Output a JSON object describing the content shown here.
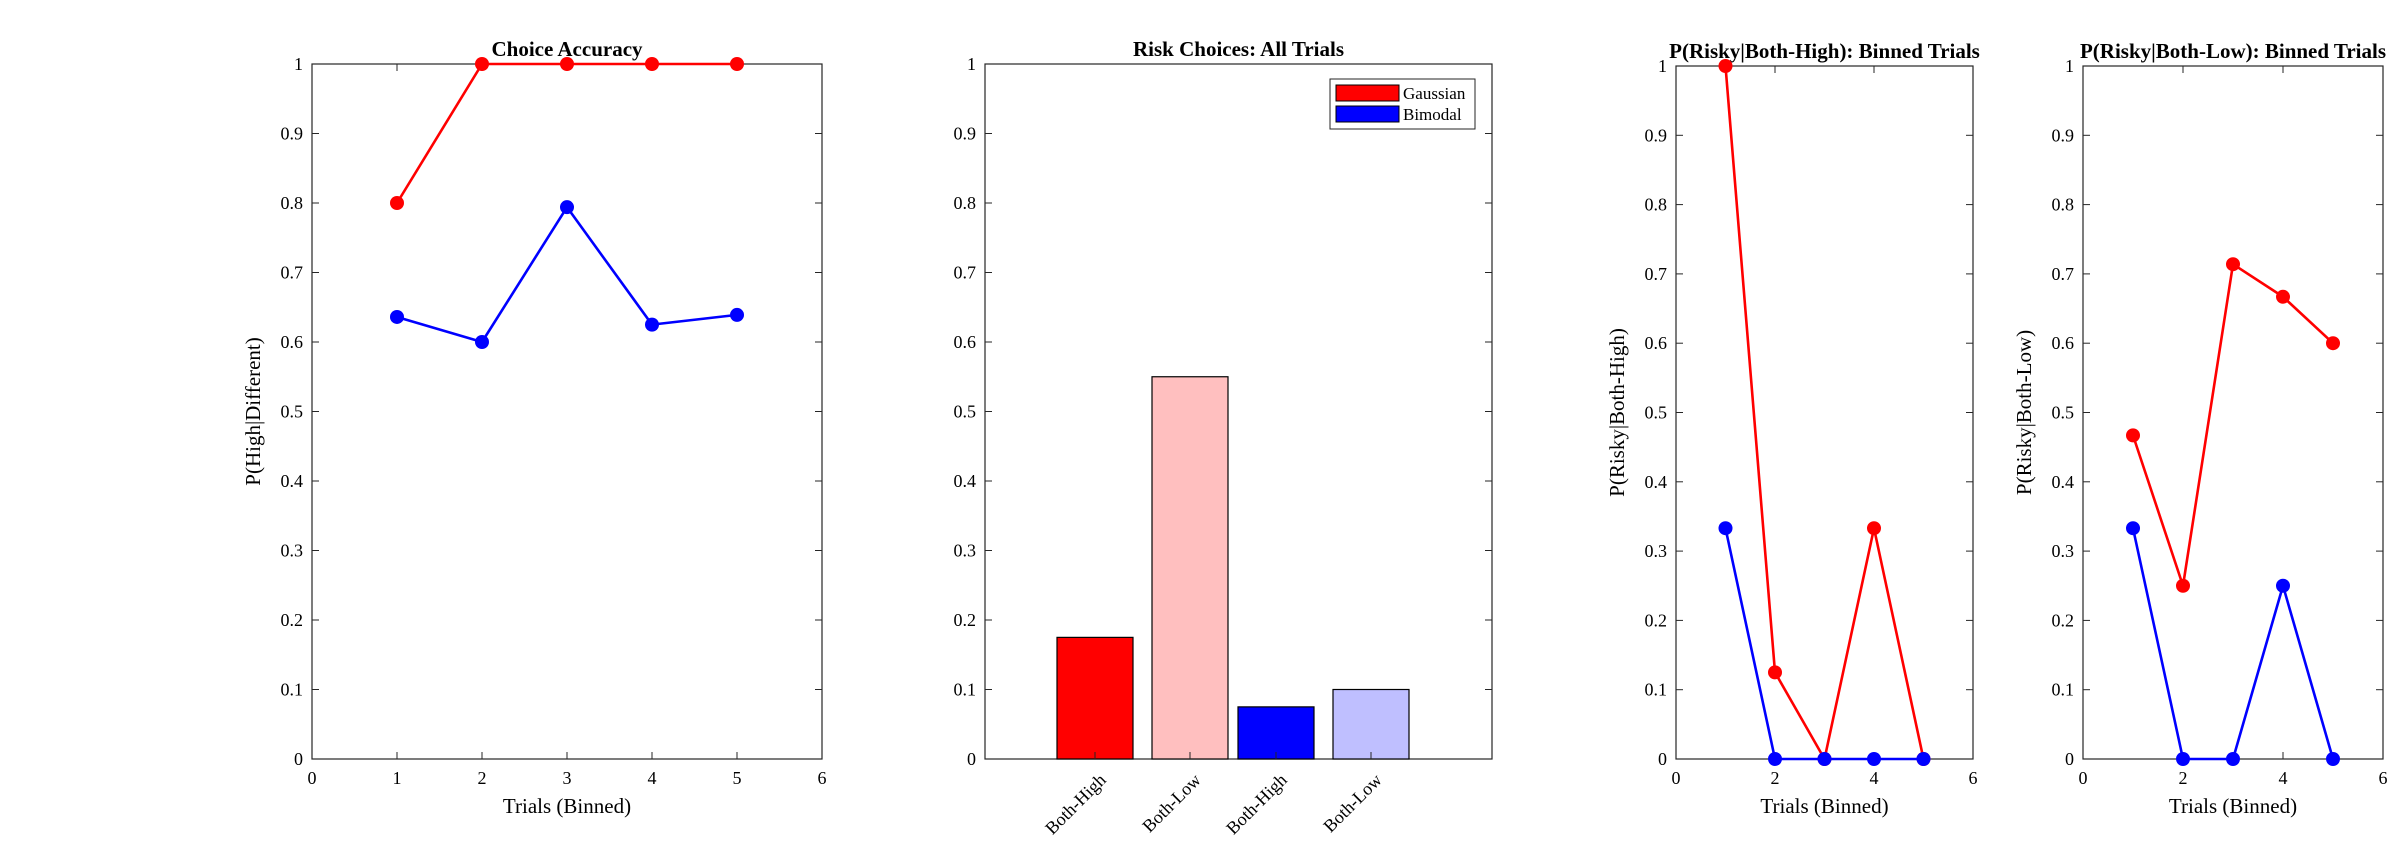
{
  "chart_data": [
    {
      "type": "line",
      "title": "Choice Accuracy",
      "xlabel": "Trials (Binned)",
      "ylabel": "P(High|Different)",
      "xlim": [
        0,
        6
      ],
      "ylim": [
        0,
        1
      ],
      "xticks": [
        "0",
        "1",
        "2",
        "3",
        "4",
        "5",
        "6"
      ],
      "yticks": [
        "0",
        "0.1",
        "0.2",
        "0.3",
        "0.4",
        "0.5",
        "0.6",
        "0.7",
        "0.8",
        "0.9",
        "1"
      ],
      "x": [
        1,
        2,
        3,
        4,
        5
      ],
      "series": [
        {
          "color": "#ff0000",
          "values": [
            0.8,
            1.0,
            1.0,
            1.0,
            1.0
          ]
        },
        {
          "color": "#0000ff",
          "values": [
            0.636,
            0.6,
            0.794,
            0.625,
            0.639
          ]
        }
      ]
    },
    {
      "type": "bar",
      "title": "Risk Choices: All Trials",
      "xlabel": "",
      "ylabel": "",
      "ylim": [
        0,
        1
      ],
      "yticks": [
        "0",
        "0.1",
        "0.2",
        "0.3",
        "0.4",
        "0.5",
        "0.6",
        "0.7",
        "0.8",
        "0.9",
        "1"
      ],
      "categories": [
        "Both-High",
        "Both-Low",
        "Both-High",
        "Both-Low"
      ],
      "values": [
        0.175,
        0.55,
        0.075,
        0.1
      ],
      "colors": [
        "#ff0000",
        "#ffbfbf",
        "#0000ff",
        "#bfbfff"
      ],
      "legend": {
        "location": "top-right",
        "entries": [
          {
            "label": "Gaussian",
            "color": "#ff0000"
          },
          {
            "label": "Bimodal",
            "color": "#0000ff"
          }
        ]
      }
    },
    {
      "type": "line",
      "title": "P(Risky|Both-High): Binned Trials",
      "xlabel": "Trials (Binned)",
      "ylabel": "P(Risky|Both-High)",
      "xlim": [
        0,
        6
      ],
      "ylim": [
        0,
        1
      ],
      "xticks": [
        "0",
        "2",
        "4",
        "6"
      ],
      "yticks": [
        "0",
        "0.1",
        "0.2",
        "0.3",
        "0.4",
        "0.5",
        "0.6",
        "0.7",
        "0.8",
        "0.9",
        "1"
      ],
      "x": [
        1,
        2,
        3,
        4,
        5
      ],
      "series": [
        {
          "color": "#ff0000",
          "values": [
            1.0,
            0.125,
            0.0,
            0.333,
            0.0
          ]
        },
        {
          "color": "#0000ff",
          "values": [
            0.333,
            0.0,
            0.0,
            0.0,
            0.0
          ]
        }
      ]
    },
    {
      "type": "line",
      "title": "P(Risky|Both-Low): Binned Trials",
      "xlabel": "Trials (Binned)",
      "ylabel": "P(Risky|Both-Low)",
      "xlim": [
        0,
        6
      ],
      "ylim": [
        0,
        1
      ],
      "xticks": [
        "0",
        "2",
        "4",
        "6"
      ],
      "yticks": [
        "0",
        "0.1",
        "0.2",
        "0.3",
        "0.4",
        "0.5",
        "0.6",
        "0.7",
        "0.8",
        "0.9",
        "1"
      ],
      "x": [
        1,
        2,
        3,
        4,
        5
      ],
      "series": [
        {
          "color": "#ff0000",
          "values": [
            0.467,
            0.25,
            0.714,
            0.667,
            0.6
          ]
        },
        {
          "color": "#0000ff",
          "values": [
            0.333,
            0.0,
            0.0,
            0.25,
            0.0
          ]
        }
      ]
    }
  ]
}
